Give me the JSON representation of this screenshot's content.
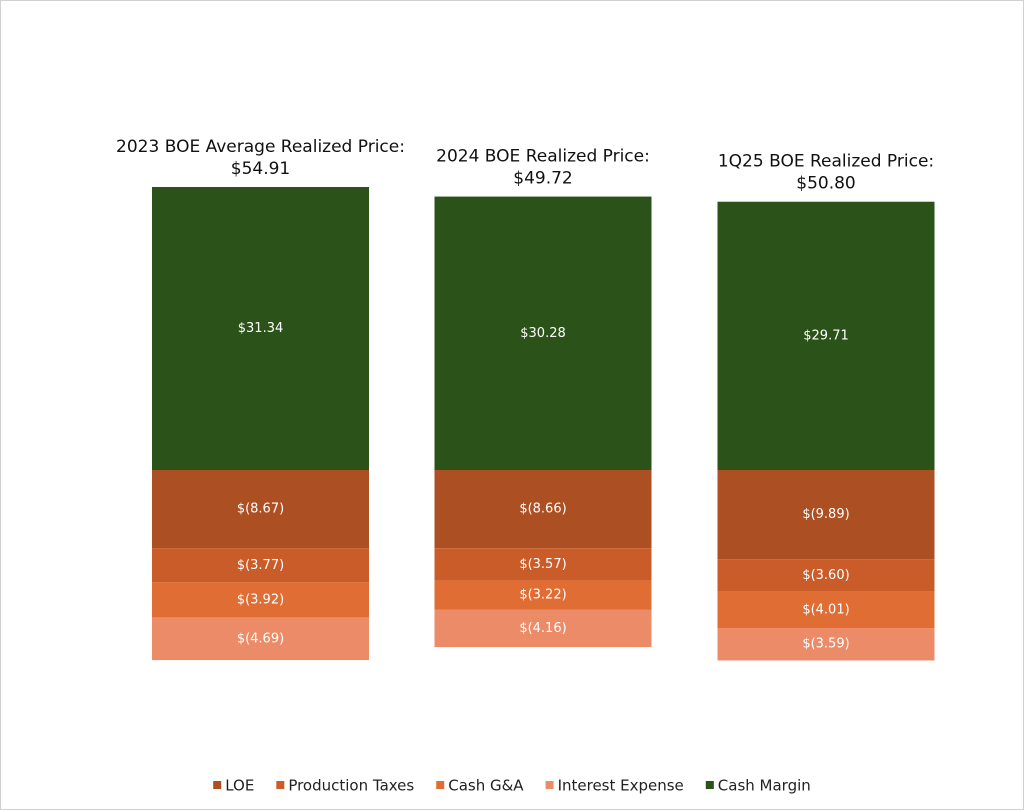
{
  "chart_data": {
    "type": "bar",
    "stacked": true,
    "categories": [
      [
        "2023 BOE Average Realized Price:",
        "$54.91"
      ],
      [
        "2024 BOE Realized Price:",
        "$49.72"
      ],
      [
        "1Q25 BOE Realized Price:",
        "$50.80"
      ]
    ],
    "series": [
      {
        "name": "LOE",
        "color": "#ac4f22",
        "values": [
          -8.67,
          -8.66,
          -9.89
        ],
        "value_labels": [
          "$(8.67)",
          "$(8.66)",
          "$(9.89)"
        ]
      },
      {
        "name": "Production Taxes",
        "color": "#c95c28",
        "values": [
          -3.77,
          -3.57,
          -3.6
        ],
        "value_labels": [
          "$(3.77)",
          "$(3.57)",
          "$(3.60)"
        ]
      },
      {
        "name": "Cash G&A",
        "color": "#e06d33",
        "values": [
          -3.92,
          -3.22,
          -4.01
        ],
        "value_labels": [
          "$(3.92)",
          "$(3.22)",
          "$(4.01)"
        ]
      },
      {
        "name": "Interest Expense",
        "color": "#ec8b67",
        "values": [
          -4.69,
          -4.16,
          -3.59
        ],
        "value_labels": [
          "$(4.69)",
          "$(4.16)",
          "$(3.59)"
        ]
      },
      {
        "name": "Cash Margin",
        "color": "#2a5219",
        "values": [
          31.34,
          30.28,
          29.71
        ],
        "value_labels": [
          "$31.34",
          "$30.28",
          "$29.71"
        ]
      }
    ]
  }
}
